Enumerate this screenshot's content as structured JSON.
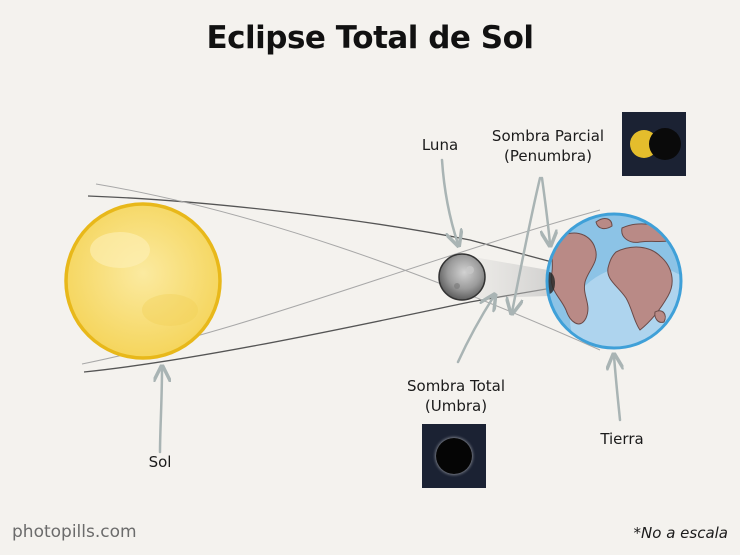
{
  "title": "Eclipse Total de Sol",
  "labels": {
    "luna": "Luna",
    "sombra_parcial_1": "Sombra Parcial",
    "sombra_parcial_2": "(Penumbra)",
    "sombra_total_1": "Sombra Total",
    "sombra_total_2": "(Umbra)",
    "sol": "Sol",
    "tierra": "Tierra"
  },
  "footer": {
    "brand": "photopills.com",
    "note": "*No a escala"
  },
  "colors": {
    "background": "#f4f2ee",
    "sun": "#f7dc6c",
    "sun_rim": "#e8b81a",
    "earth_ocean": "#8cc3e6",
    "earth_land": "#b98a86",
    "earth_rim": "#3fa0d8",
    "moon": "#9a9a9a",
    "arrow": "#a9b4b4",
    "inset_bg": "#1b2233"
  },
  "icons": [
    "partial-eclipse-icon",
    "total-eclipse-icon"
  ]
}
